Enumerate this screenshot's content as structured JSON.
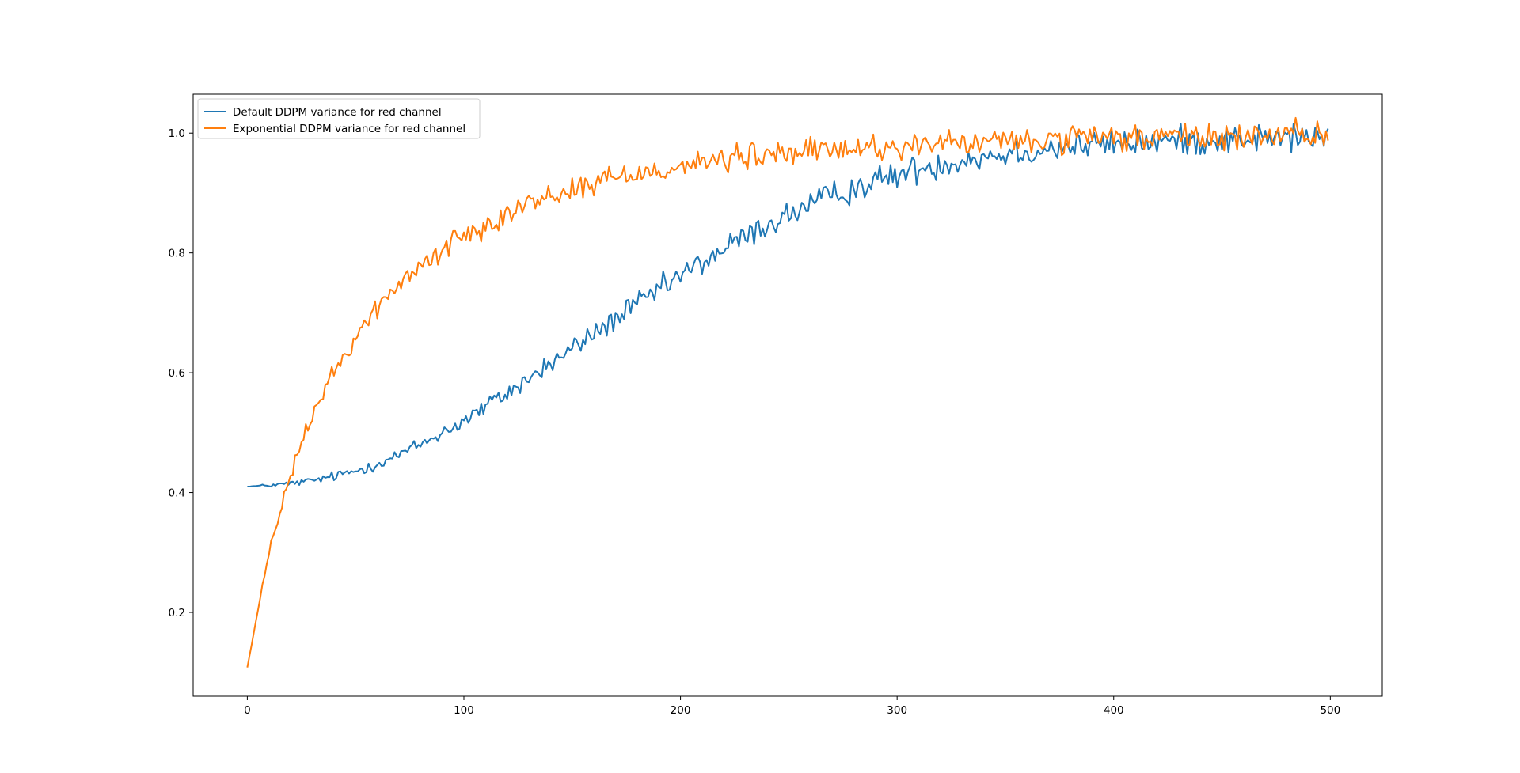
{
  "chart_data": {
    "type": "line",
    "title": "",
    "xlabel": "",
    "ylabel": "",
    "xlim": [
      -25,
      524
    ],
    "ylim": [
      0.06,
      1.065
    ],
    "xticks": [
      0,
      100,
      200,
      300,
      400,
      500
    ],
    "yticks": [
      0.2,
      0.4,
      0.6,
      0.8,
      1.0
    ],
    "xtick_labels": [
      "0",
      "100",
      "200",
      "300",
      "400",
      "500"
    ],
    "ytick_labels": [
      "0.2",
      "0.4",
      "0.6",
      "0.8",
      "1.0"
    ],
    "grid": false,
    "legend_position": "top-left",
    "series": [
      {
        "name": "Default DDPM variance for red channel",
        "color": "#1f77b4",
        "x": [
          0,
          10,
          20,
          30,
          40,
          50,
          60,
          70,
          80,
          90,
          100,
          110,
          120,
          130,
          140,
          150,
          160,
          170,
          180,
          190,
          200,
          210,
          220,
          230,
          240,
          250,
          260,
          270,
          280,
          290,
          300,
          310,
          320,
          330,
          340,
          350,
          360,
          370,
          380,
          390,
          400,
          410,
          420,
          430,
          440,
          450,
          460,
          470,
          480,
          490,
          499
        ],
        "y": [
          0.41,
          0.412,
          0.415,
          0.42,
          0.427,
          0.436,
          0.448,
          0.463,
          0.48,
          0.5,
          0.52,
          0.543,
          0.566,
          0.59,
          0.615,
          0.64,
          0.665,
          0.69,
          0.714,
          0.738,
          0.762,
          0.784,
          0.806,
          0.827,
          0.846,
          0.864,
          0.88,
          0.895,
          0.908,
          0.92,
          0.93,
          0.94,
          0.948,
          0.955,
          0.961,
          0.966,
          0.97,
          0.974,
          0.977,
          0.98,
          0.982,
          0.984,
          0.986,
          0.987,
          0.988,
          0.989,
          0.99,
          0.991,
          0.992,
          0.993,
          0.994
        ],
        "noise": [
          0,
          0.002,
          0.003,
          0.004,
          0.005,
          0.006,
          0.006,
          0.007,
          0.008,
          0.009,
          0.01,
          0.01,
          0.011,
          0.011,
          0.012,
          0.012,
          0.012,
          0.013,
          0.013,
          0.013,
          0.013,
          0.014,
          0.014,
          0.014,
          0.014,
          0.014,
          0.015,
          0.015,
          0.015,
          0.015,
          0.015,
          0.015,
          0.015,
          0.015,
          0.015,
          0.015,
          0.015,
          0.015,
          0.015,
          0.015,
          0.015,
          0.015,
          0.015,
          0.015,
          0.015,
          0.015,
          0.015,
          0.015,
          0.015,
          0.015,
          0.015
        ]
      },
      {
        "name": "Exponential DDPM variance for red channel",
        "color": "#ff7f0e",
        "x": [
          0,
          10,
          20,
          30,
          40,
          50,
          60,
          70,
          80,
          90,
          100,
          110,
          120,
          130,
          140,
          150,
          160,
          170,
          180,
          190,
          200,
          210,
          220,
          230,
          240,
          250,
          260,
          270,
          280,
          290,
          300,
          310,
          320,
          330,
          340,
          350,
          360,
          370,
          380,
          390,
          400,
          410,
          420,
          430,
          440,
          450,
          460,
          470,
          480,
          490,
          499
        ],
        "y": [
          0.108,
          0.3,
          0.43,
          0.53,
          0.6,
          0.66,
          0.71,
          0.745,
          0.78,
          0.805,
          0.83,
          0.85,
          0.867,
          0.883,
          0.895,
          0.907,
          0.917,
          0.926,
          0.934,
          0.94,
          0.946,
          0.951,
          0.955,
          0.959,
          0.963,
          0.966,
          0.969,
          0.972,
          0.974,
          0.976,
          0.978,
          0.98,
          0.982,
          0.983,
          0.984,
          0.986,
          0.987,
          0.988,
          0.989,
          0.99,
          0.991,
          0.992,
          0.992,
          0.993,
          0.993,
          0.994,
          0.994,
          0.995,
          0.995,
          0.995,
          0.995
        ],
        "noise": [
          0,
          0.005,
          0.007,
          0.008,
          0.01,
          0.01,
          0.011,
          0.011,
          0.012,
          0.012,
          0.012,
          0.013,
          0.013,
          0.013,
          0.013,
          0.013,
          0.014,
          0.014,
          0.014,
          0.014,
          0.014,
          0.014,
          0.014,
          0.014,
          0.014,
          0.014,
          0.014,
          0.014,
          0.014,
          0.014,
          0.014,
          0.014,
          0.014,
          0.014,
          0.014,
          0.014,
          0.014,
          0.014,
          0.014,
          0.014,
          0.014,
          0.014,
          0.014,
          0.014,
          0.014,
          0.014,
          0.014,
          0.014,
          0.014,
          0.014,
          0.014
        ]
      }
    ]
  }
}
